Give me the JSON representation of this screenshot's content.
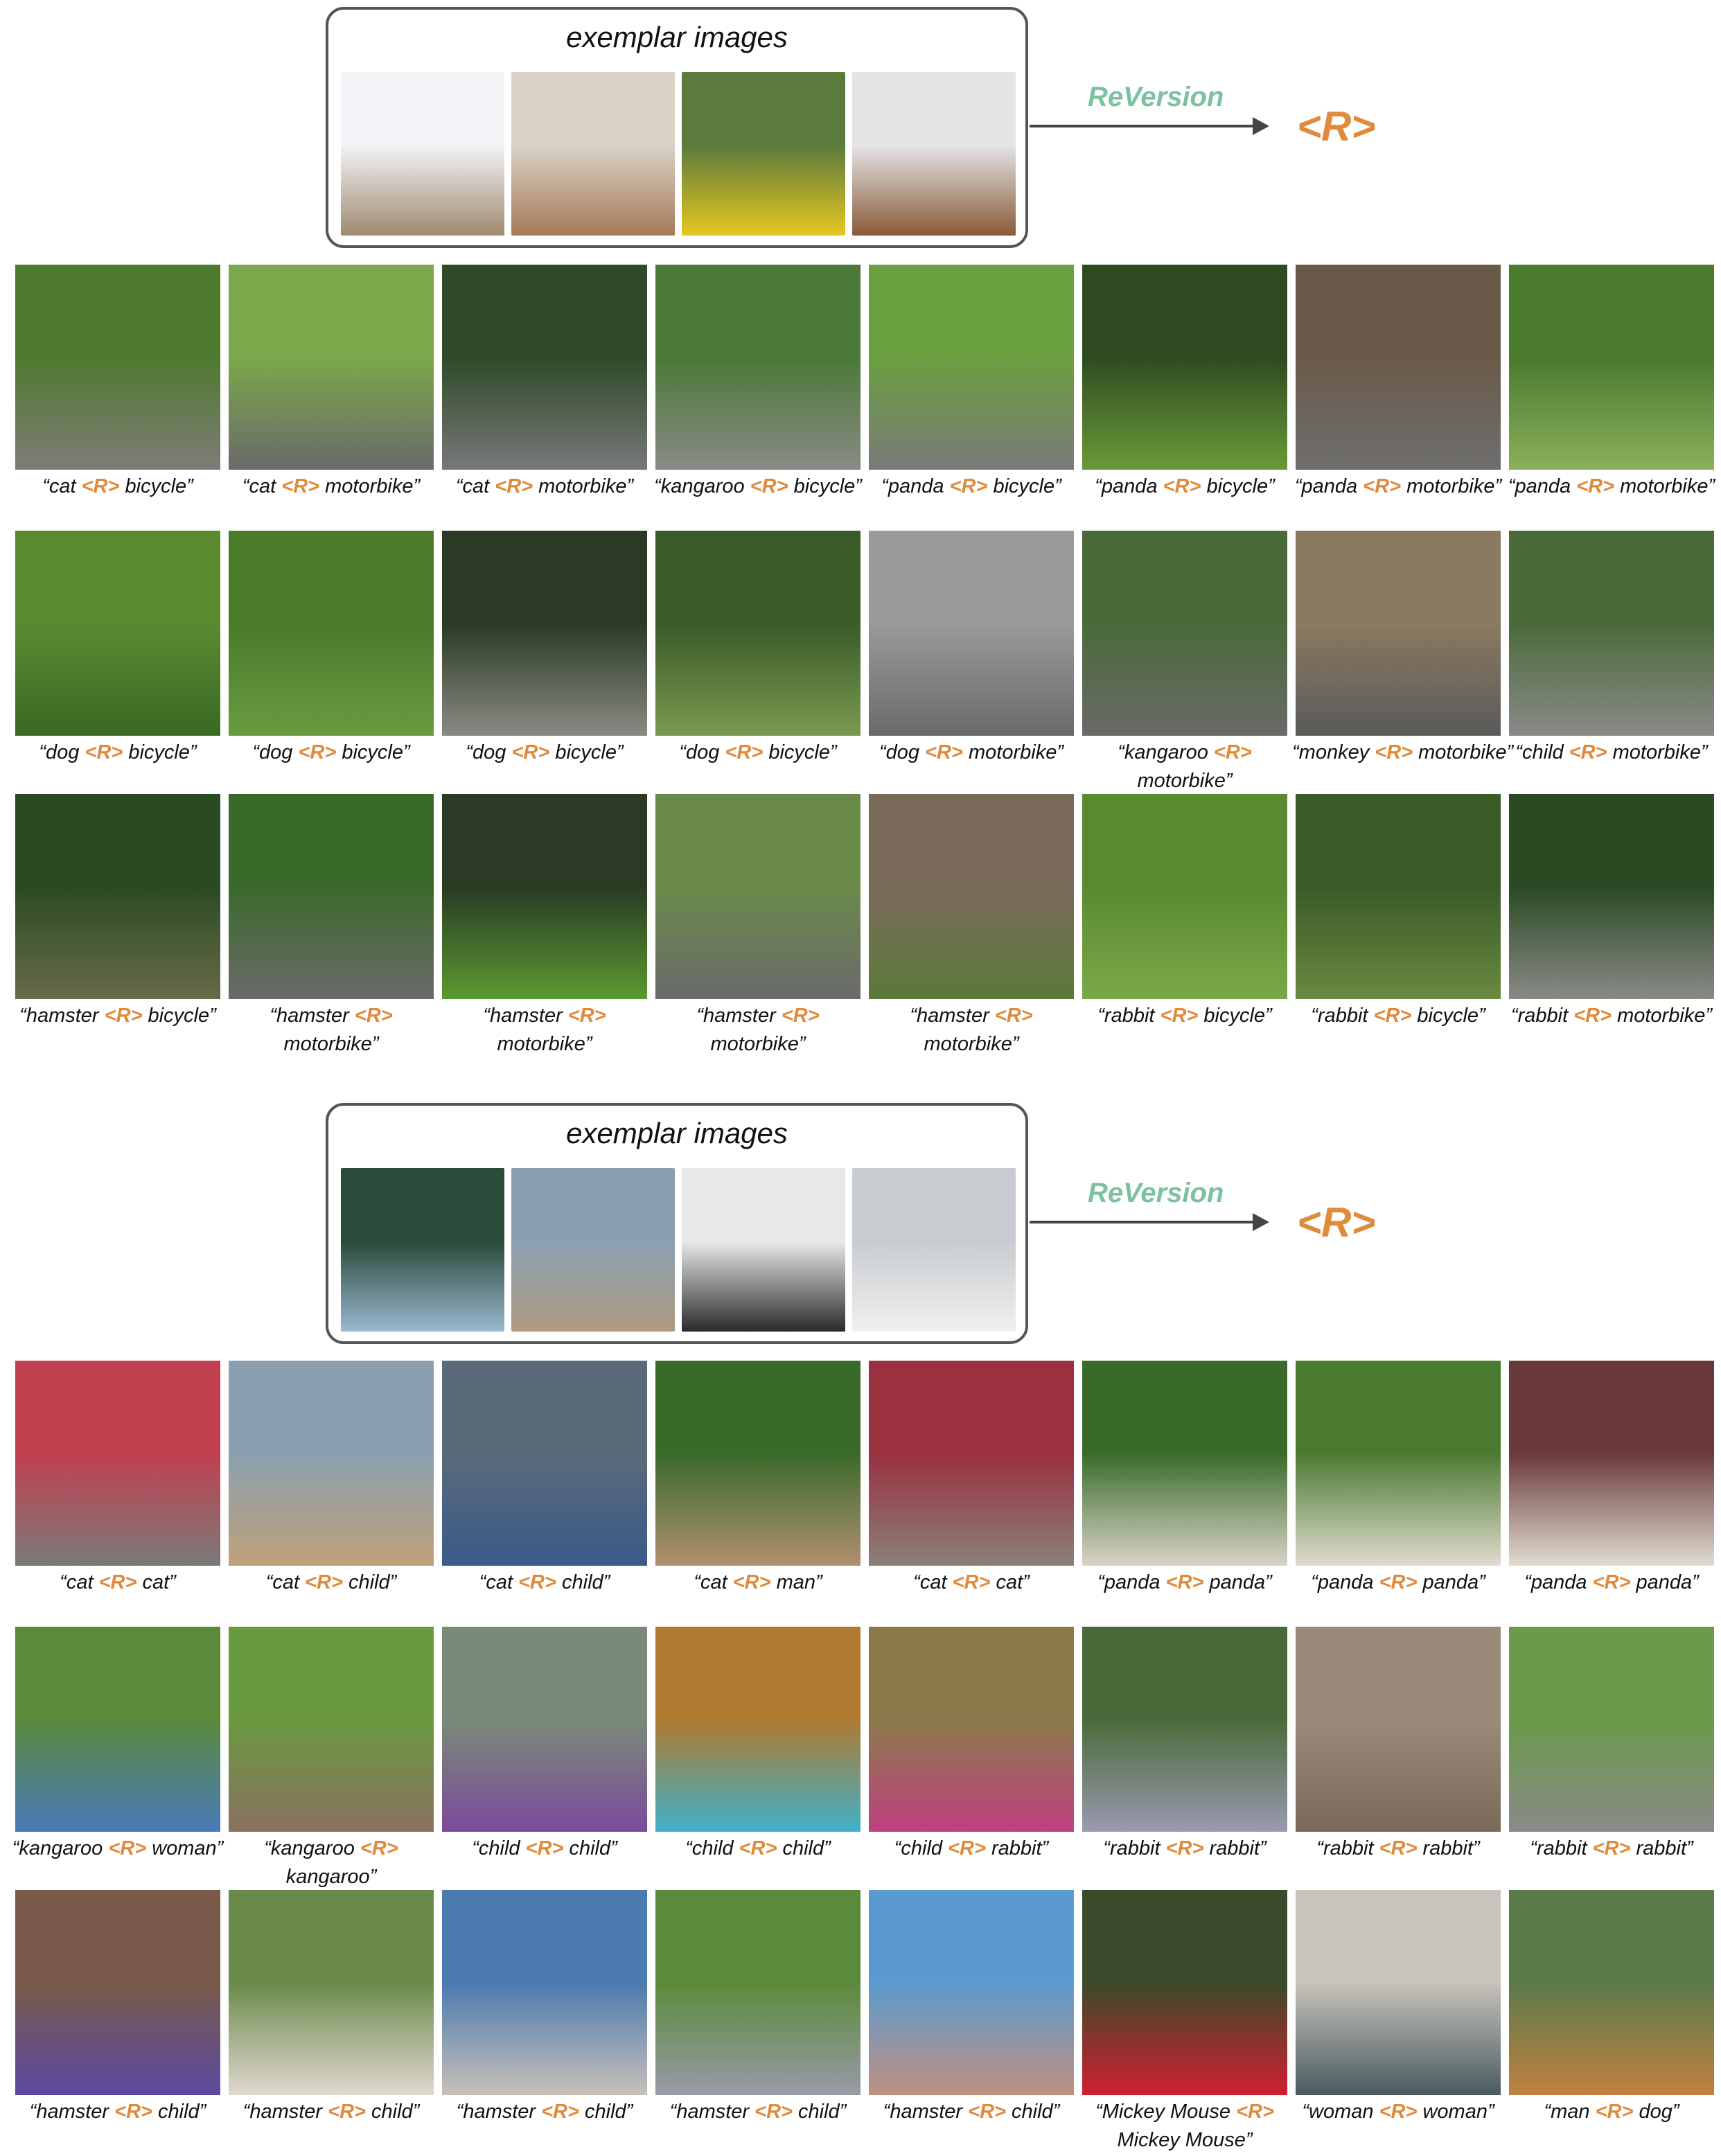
{
  "colors": {
    "reversion": "#7cc1a0",
    "token": "#e08a3c"
  },
  "sections": [
    {
      "exemplar_title": "exemplar images",
      "method_label": "ReVersion",
      "token": "<R>",
      "exemplars": [
        {
          "icon": "horse-rider-photo",
          "colors": [
            "#f2f3f6",
            "#a08a70"
          ]
        },
        {
          "icon": "children-piggyback-photo",
          "colors": [
            "#d8d2c6",
            "#a67a58"
          ]
        },
        {
          "icon": "panda-on-rocking-toy-photo",
          "colors": [
            "#5c7a3c",
            "#e6c820"
          ]
        },
        {
          "icon": "child-on-pony-toy-photo",
          "colors": [
            "#e4e4e6",
            "#8a5a38"
          ]
        }
      ],
      "rows": [
        [
          {
            "text": "“cat <R> bicycle”",
            "colors": [
              "#4e7a2e",
              "#7e7c78"
            ]
          },
          {
            "text": "“cat <R> motorbike”",
            "colors": [
              "#7aa84a",
              "#6a6a6a"
            ]
          },
          {
            "text": "“cat <R> motorbike”",
            "colors": [
              "#2f4a28",
              "#78787a"
            ]
          },
          {
            "text": "“kangaroo <R> bicycle”",
            "colors": [
              "#4a7a36",
              "#8a8a86"
            ]
          },
          {
            "text": "“panda <R> bicycle”",
            "colors": [
              "#6aa040",
              "#7a7a78"
            ]
          },
          {
            "text": "“panda <R> bicycle”",
            "colors": [
              "#2e4a20",
              "#6a9a38"
            ]
          },
          {
            "text": "“panda <R> motorbike”",
            "colors": [
              "#6a5a4a",
              "#6e6e6e"
            ]
          },
          {
            "text": "“panda <R> motorbike”",
            "colors": [
              "#4a7a2e",
              "#8ab05a"
            ]
          }
        ],
        [
          {
            "text": "“dog <R> bicycle”",
            "colors": [
              "#5a8a30",
              "#3a6a24"
            ]
          },
          {
            "text": "“dog <R> bicycle”",
            "colors": [
              "#4a7a2a",
              "#6a9a40"
            ]
          },
          {
            "text": "“dog <R> bicycle”",
            "colors": [
              "#2a3a24",
              "#8a8a84"
            ]
          },
          {
            "text": "“dog <R> bicycle”",
            "colors": [
              "#3a5a28",
              "#7a9a50"
            ]
          },
          {
            "text": "“dog <R> motorbike”",
            "colors": [
              "#9a9a98",
              "#6a6a6c"
            ]
          },
          {
            "text": "“kangaroo <R> motorbike”",
            "colors": [
              "#4a6a3a",
              "#6a6a68"
            ]
          },
          {
            "text": "“monkey <R> motorbike”",
            "colors": [
              "#8a7a60",
              "#5a5a5a"
            ]
          },
          {
            "text": "“child <R> motorbike”",
            "colors": [
              "#4a6a3a",
              "#8a8a8a"
            ]
          }
        ],
        [
          {
            "text": "“hamster <R> bicycle”",
            "colors": [
              "#2a4a24",
              "#6a6a4a"
            ]
          },
          {
            "text": "“hamster <R> motorbike”",
            "colors": [
              "#3a6a2a",
              "#6a6a6a"
            ]
          },
          {
            "text": "“hamster <R> motorbike”",
            "colors": [
              "#2a3a24",
              "#5a9a30"
            ]
          },
          {
            "text": "“hamster <R> motorbike”",
            "colors": [
              "#6a8a4a",
              "#6a6a6a"
            ]
          },
          {
            "text": "“hamster <R> motorbike”",
            "colors": [
              "#7a6a5a",
              "#5a7a3a"
            ]
          },
          {
            "text": "“rabbit <R> bicycle”",
            "colors": [
              "#5a8a30",
              "#7aa84a"
            ]
          },
          {
            "text": "“rabbit <R> bicycle”",
            "colors": [
              "#3a5a28",
              "#6a8a40"
            ]
          },
          {
            "text": "“rabbit <R> motorbike”",
            "colors": [
              "#2a4a24",
              "#8a8a86"
            ]
          }
        ]
      ]
    },
    {
      "exemplar_title": "exemplar images",
      "method_label": "ReVersion",
      "token": "<R>",
      "exemplars": [
        {
          "icon": "couple-hugging-photo",
          "colors": [
            "#2a4a3a",
            "#9ab8d0"
          ]
        },
        {
          "icon": "couple-hugging-dock-photo",
          "colors": [
            "#8aa0b0",
            "#b09a80"
          ]
        },
        {
          "icon": "two-dogs-hugging-photo",
          "colors": [
            "#e6e8ea",
            "#2a2a2a"
          ]
        },
        {
          "icon": "women-hugging-photo",
          "colors": [
            "#c8ccd0",
            "#f0f0f0"
          ]
        }
      ],
      "rows": [
        [
          {
            "text": "“cat <R> cat”",
            "colors": [
              "#c04050",
              "#7a7a78"
            ]
          },
          {
            "text": "“cat <R> child”",
            "colors": [
              "#8aa0b0",
              "#c0a078"
            ]
          },
          {
            "text": "“cat <R> child”",
            "colors": [
              "#5a6a7a",
              "#3a5a8a"
            ]
          },
          {
            "text": "“cat <R> man”",
            "colors": [
              "#3a6a2a",
              "#b09070"
            ]
          },
          {
            "text": "“cat <R> cat”",
            "colors": [
              "#9a3040",
              "#8a8078"
            ]
          },
          {
            "text": "“panda <R> panda”",
            "colors": [
              "#3a6a2a",
              "#d8d4c8"
            ]
          },
          {
            "text": "“panda <R> panda”",
            "colors": [
              "#4a7a30",
              "#e0dcd0"
            ]
          },
          {
            "text": "“panda <R> panda”",
            "colors": [
              "#6a3a3a",
              "#e0dcd0"
            ]
          }
        ],
        [
          {
            "text": "“kangaroo <R> woman”",
            "colors": [
              "#5a8a3a",
              "#4a7ab8"
            ]
          },
          {
            "text": "“kangaroo <R> kangaroo”",
            "colors": [
              "#6a9a40",
              "#8a7060"
            ]
          },
          {
            "text": "“child <R> child”",
            "colors": [
              "#7a8a7a",
              "#7a4a9a"
            ]
          },
          {
            "text": "“child <R> child”",
            "colors": [
              "#b07a30",
              "#40b0c8"
            ]
          },
          {
            "text": "“child <R> rabbit”",
            "colors": [
              "#8a7a4a",
              "#c04080"
            ]
          },
          {
            "text": "“rabbit <R> rabbit”",
            "colors": [
              "#4a6a3a",
              "#9a9ab0"
            ]
          },
          {
            "text": "“rabbit <R> rabbit”",
            "colors": [
              "#9a8a7a",
              "#7a6a5a"
            ]
          },
          {
            "text": "“rabbit <R> rabbit”",
            "colors": [
              "#6a9a4a",
              "#8a8a88"
            ]
          }
        ],
        [
          {
            "text": "“hamster <R> child”",
            "colors": [
              "#7a5a4a",
              "#5a4aa0"
            ]
          },
          {
            "text": "“hamster <R> child”",
            "colors": [
              "#6a8a4a",
              "#e0d8d0"
            ]
          },
          {
            "text": "“hamster <R> child”",
            "colors": [
              "#4a7ab0",
              "#c8c0b8"
            ]
          },
          {
            "text": "“hamster <R> child”",
            "colors": [
              "#5a8a3a",
              "#9a9aa8"
            ]
          },
          {
            "text": "“hamster <R> child”",
            "colors": [
              "#5a9ad0",
              "#c09080"
            ]
          },
          {
            "text": "“Mickey Mouse <R> Mickey Mouse”",
            "colors": [
              "#3a4a2a",
              "#d02030"
            ]
          },
          {
            "text": "“woman <R> woman”",
            "colors": [
              "#c8c4bc",
              "#4a5a60"
            ]
          },
          {
            "text": "“man <R> dog”",
            "colors": [
              "#5a7a4a",
              "#c08040"
            ]
          }
        ]
      ]
    }
  ]
}
